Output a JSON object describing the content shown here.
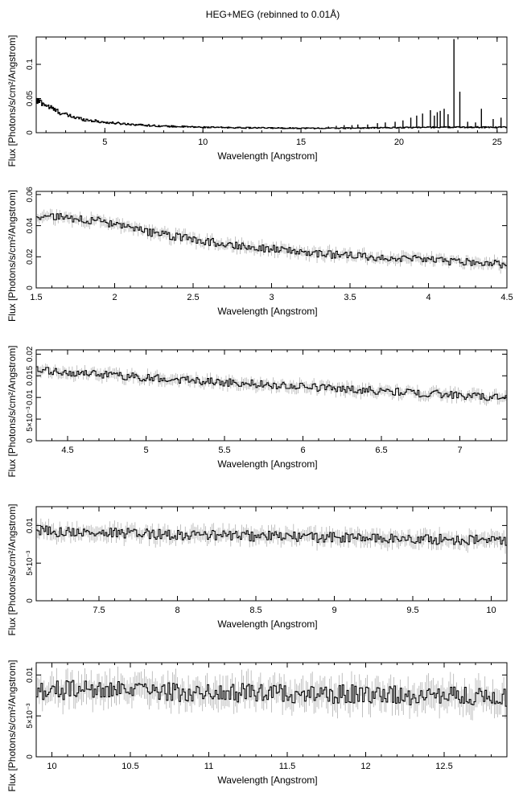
{
  "figure": {
    "title": "HEG+MEG (rebinned to 0.01Å)"
  },
  "chart_data": [
    {
      "type": "line",
      "xlabel": "Wavelength [Angstrom]",
      "ylabel": "Flux [Photons/s/cm²/Angstrom]",
      "xlim": [
        1.5,
        25.5
      ],
      "ylim": [
        0,
        0.14
      ],
      "xticks": [
        5,
        10,
        15,
        20,
        25
      ],
      "yticks": [
        0,
        0.05,
        0.1
      ],
      "ytick_labels": [
        "0",
        "0.05",
        "0.1"
      ],
      "grid": false,
      "continuum": {
        "x": [
          1.5,
          1.8,
          2,
          2.5,
          3,
          3.5,
          4,
          5,
          6,
          7,
          8,
          10,
          12,
          14,
          16,
          18,
          20,
          22,
          25.5
        ],
        "y": [
          0.046,
          0.044,
          0.04,
          0.032,
          0.026,
          0.022,
          0.019,
          0.015,
          0.013,
          0.011,
          0.0095,
          0.008,
          0.0072,
          0.0068,
          0.0065,
          0.0068,
          0.0075,
          0.008,
          0.008
        ]
      },
      "lines": [
        {
          "x": 22.8,
          "y": 0.137
        },
        {
          "x": 23.1,
          "y": 0.06
        },
        {
          "x": 24.2,
          "y": 0.035
        },
        {
          "x": 21.6,
          "y": 0.033
        },
        {
          "x": 21.2,
          "y": 0.028
        },
        {
          "x": 21.95,
          "y": 0.03
        },
        {
          "x": 22.1,
          "y": 0.032
        },
        {
          "x": 22.3,
          "y": 0.035
        },
        {
          "x": 20.9,
          "y": 0.025
        },
        {
          "x": 21.8,
          "y": 0.025
        },
        {
          "x": 22.5,
          "y": 0.027
        },
        {
          "x": 20.6,
          "y": 0.022
        },
        {
          "x": 25.2,
          "y": 0.022
        },
        {
          "x": 20.2,
          "y": 0.018
        },
        {
          "x": 19.8,
          "y": 0.016
        },
        {
          "x": 24.8,
          "y": 0.02
        },
        {
          "x": 23.5,
          "y": 0.016
        },
        {
          "x": 23.9,
          "y": 0.015
        },
        {
          "x": 19.3,
          "y": 0.015
        },
        {
          "x": 18.9,
          "y": 0.014
        },
        {
          "x": 18.4,
          "y": 0.012
        },
        {
          "x": 17.9,
          "y": 0.012
        },
        {
          "x": 17.6,
          "y": 0.011
        },
        {
          "x": 17.2,
          "y": 0.011
        },
        {
          "x": 16.8,
          "y": 0.01
        },
        {
          "x": 16.4,
          "y": 0.009
        }
      ]
    },
    {
      "type": "line",
      "xlabel": "Wavelength [Angstrom]",
      "ylabel": "Flux [Photons/s/cm²/Angstrom]",
      "xlim": [
        1.5,
        4.5
      ],
      "ylim": [
        0,
        0.062
      ],
      "xticks": [
        1.5,
        2,
        2.5,
        3,
        3.5,
        4,
        4.5
      ],
      "yticks": [
        0,
        0.02,
        0.04,
        0.06
      ],
      "ytick_labels": [
        "0",
        "0.02",
        "0.04",
        "0.06"
      ],
      "grid": false,
      "continuum": {
        "x": [
          1.5,
          1.7,
          1.9,
          2.0,
          2.2,
          2.5,
          2.8,
          3.0,
          3.3,
          3.6,
          4.0,
          4.5
        ],
        "y": [
          0.046,
          0.045,
          0.043,
          0.04,
          0.036,
          0.031,
          0.027,
          0.025,
          0.022,
          0.02,
          0.018,
          0.015
        ]
      },
      "noise": 0.0025
    },
    {
      "type": "line",
      "xlabel": "Wavelength [Angstrom]",
      "ylabel": "Flux [Photons/s/cm²/Angstrom]",
      "xlim": [
        4.3,
        7.3
      ],
      "ylim": [
        0,
        0.021
      ],
      "xticks": [
        4.5,
        5,
        5.5,
        6,
        6.5,
        7
      ],
      "yticks": [
        0,
        0.005,
        0.01,
        0.015,
        0.02
      ],
      "ytick_labels": [
        "0",
        "5×10⁻³",
        "0.01",
        "0.015",
        "0.02"
      ],
      "grid": false,
      "continuum": {
        "x": [
          4.3,
          4.6,
          5.0,
          5.5,
          6.0,
          6.5,
          7.0,
          7.3
        ],
        "y": [
          0.0162,
          0.0155,
          0.0146,
          0.0135,
          0.0125,
          0.0115,
          0.0105,
          0.0098
        ]
      },
      "noise": 0.0009
    },
    {
      "type": "line",
      "xlabel": "Wavelength [Angstrom]",
      "ylabel": "Flux [Photons/s/cm²/Angstrom]",
      "xlim": [
        7.1,
        10.1
      ],
      "ylim": [
        0,
        0.0125
      ],
      "xticks": [
        7.5,
        8,
        8.5,
        9,
        9.5,
        10
      ],
      "yticks": [
        0,
        0.005,
        0.01
      ],
      "ytick_labels": [
        "0",
        "5×10⁻³",
        "0.01"
      ],
      "grid": false,
      "continuum": {
        "x": [
          7.1,
          7.5,
          8.0,
          8.5,
          9.0,
          9.5,
          10.1
        ],
        "y": [
          0.0093,
          0.009,
          0.0088,
          0.0086,
          0.0084,
          0.0082,
          0.008
        ]
      },
      "noise": 0.0007
    },
    {
      "type": "line",
      "xlabel": "Wavelength [Angstrom]",
      "ylabel": "Flux [Photons/s/cm²/Angstrom]",
      "xlim": [
        9.9,
        12.9
      ],
      "ylim": [
        0,
        0.0115
      ],
      "xticks": [
        10,
        10.5,
        11,
        11.5,
        12,
        12.5
      ],
      "yticks": [
        0,
        0.005,
        0.01
      ],
      "ytick_labels": [
        "0",
        "5×10⁻³",
        "0.01"
      ],
      "grid": false,
      "continuum": {
        "x": [
          9.9,
          10.5,
          11.0,
          11.5,
          12.0,
          12.5,
          12.9
        ],
        "y": [
          0.0082,
          0.008,
          0.0079,
          0.0078,
          0.0076,
          0.0074,
          0.0073
        ]
      },
      "noise": 0.0012
    }
  ]
}
